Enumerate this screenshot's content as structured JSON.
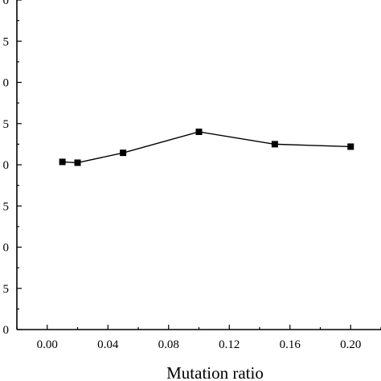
{
  "chart_data": {
    "type": "line",
    "title": "",
    "xlabel": "Mutation ratio",
    "ylabel": "",
    "xlim": [
      -0.02,
      0.22
    ],
    "ylim": [
      0,
      8
    ],
    "xticks": [
      0.0,
      0.04,
      0.08,
      0.12,
      0.16,
      0.2
    ],
    "xtick_labels": [
      "0.00",
      "0.04",
      "0.08",
      "0.12",
      "0.16",
      "0.20"
    ],
    "yticks": [
      0,
      1,
      2,
      3,
      4,
      5,
      6,
      7,
      8
    ],
    "ytick_labels": [
      "0",
      "5",
      "0",
      "5",
      "0",
      "5",
      "0",
      "5",
      "0"
    ],
    "grid": false,
    "legend": "none",
    "series": [
      {
        "x": [
          0.01,
          0.02,
          0.05,
          0.1,
          0.15,
          0.2
        ],
        "y": [
          4.07,
          4.05,
          4.29,
          4.8,
          4.5,
          4.44
        ],
        "marker": "square",
        "color": "#000000"
      }
    ]
  }
}
